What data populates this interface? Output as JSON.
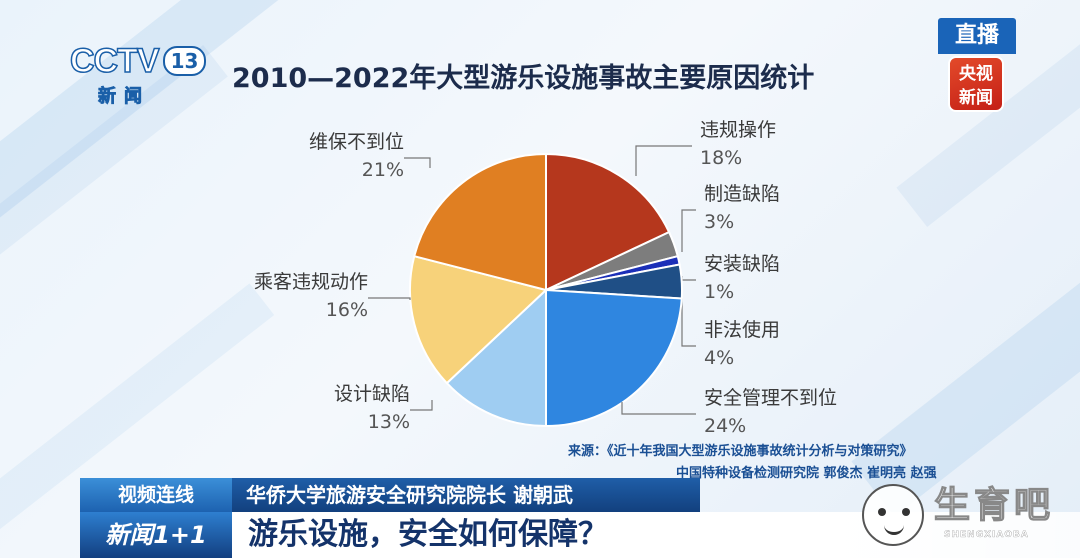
{
  "logo": {
    "brand": "CCTV",
    "channel": "13",
    "sub": "新闻"
  },
  "live_badge": {
    "top": "直播",
    "bottom": "央视\n新闻"
  },
  "chart_data": {
    "type": "pie",
    "title": "2010—2022年大型游乐设施事故主要原因统计",
    "slices": [
      {
        "label": "违规操作",
        "value": 18,
        "pct_label": "18%",
        "color": "#b5371d"
      },
      {
        "label": "制造缺陷",
        "value": 3,
        "pct_label": "3%",
        "color": "#7d7d7d"
      },
      {
        "label": "安装缺陷",
        "value": 1,
        "pct_label": "1%",
        "color": "#1b2fb8"
      },
      {
        "label": "非法使用",
        "value": 4,
        "pct_label": "4%",
        "color": "#1f4f86"
      },
      {
        "label": "安全管理不到位",
        "value": 24,
        "pct_label": "24%",
        "color": "#2f86e0"
      },
      {
        "label": "设计缺陷",
        "value": 13,
        "pct_label": "13%",
        "color": "#9fcdf2"
      },
      {
        "label": "乘客违规动作",
        "value": 16,
        "pct_label": "16%",
        "color": "#f7d27a"
      },
      {
        "label": "维保不到位",
        "value": 21,
        "pct_label": "21%",
        "color": "#e07f22"
      }
    ]
  },
  "source": {
    "line1": "来源：《近十年我国大型游乐设施事故统计分析与对策研究》",
    "line2": "中国特种设备检测研究院 郭俊杰 崔明亮 赵强"
  },
  "lower_third": {
    "tag": "视频连线",
    "speaker": "华侨大学旅游安全研究院院长 谢朝武",
    "show": "新闻1+1",
    "headline": "游乐设施，安全如何保障？"
  },
  "watermark": {
    "text": "生育吧",
    "sub": "SHENGXIAOBA"
  }
}
